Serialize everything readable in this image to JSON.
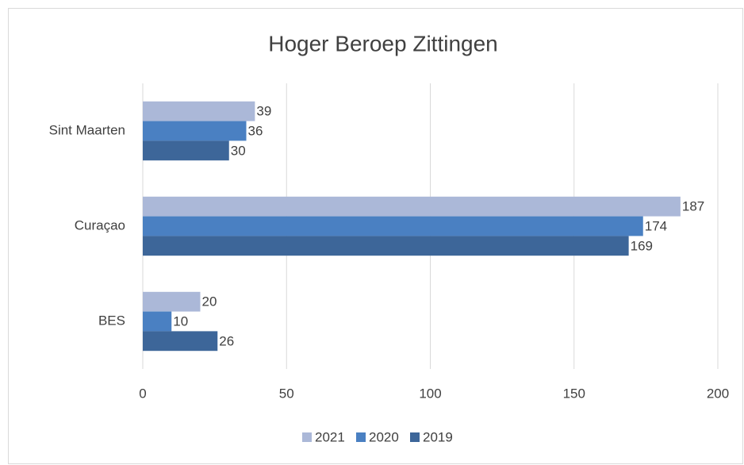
{
  "chart_data": {
    "type": "hbar",
    "title": "Hoger Beroep Zittingen",
    "categories": [
      "Sint Maarten",
      "Curaçao",
      "BES"
    ],
    "series": [
      {
        "name": "2021",
        "color": "#abb8d8",
        "values": [
          39,
          187,
          20
        ]
      },
      {
        "name": "2020",
        "color": "#4a80c2",
        "values": [
          36,
          174,
          10
        ]
      },
      {
        "name": "2019",
        "color": "#3d6699",
        "values": [
          30,
          169,
          26
        ]
      }
    ],
    "xlim": [
      0,
      200
    ],
    "xticks": [
      0,
      50,
      100,
      150,
      200
    ],
    "grid": true,
    "legend": "bottom"
  }
}
